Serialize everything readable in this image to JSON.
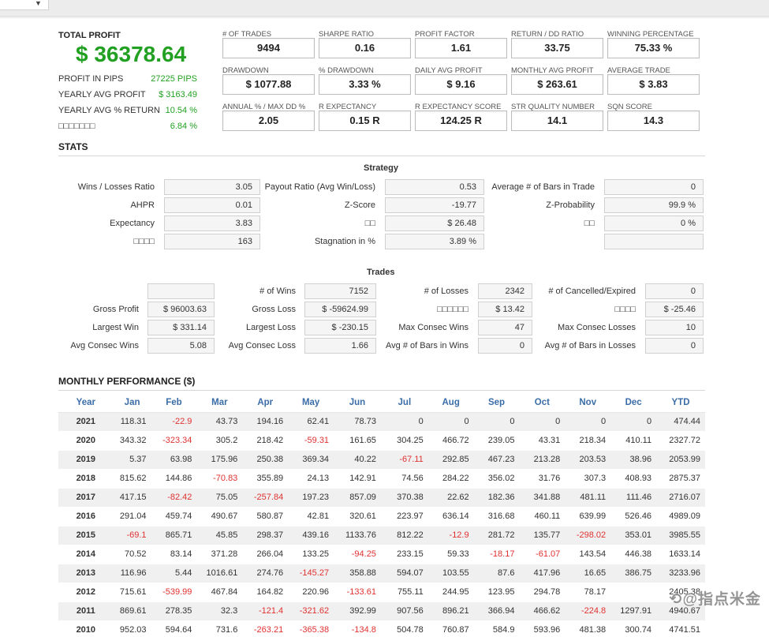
{
  "header": {
    "total_profit_label": "TOTAL PROFIT",
    "total_profit_value": "$ 36378.64",
    "summary": [
      {
        "label": "PROFIT IN PIPS",
        "value": "27225 PIPS"
      },
      {
        "label": "YEARLY AVG PROFIT",
        "value": "$ 3163.49"
      },
      {
        "label": "YEARLY AVG % RETURN",
        "value": "10.54 %"
      },
      {
        "label": "□□□□□□□",
        "value": "6.84 %"
      }
    ]
  },
  "metrics": [
    {
      "label": "# OF TRADES",
      "value": "9494"
    },
    {
      "label": "SHARPE RATIO",
      "value": "0.16"
    },
    {
      "label": "PROFIT FACTOR",
      "value": "1.61"
    },
    {
      "label": "RETURN / DD RATIO",
      "value": "33.75"
    },
    {
      "label": "WINNING PERCENTAGE",
      "value": "75.33 %"
    },
    {
      "label": "DRAWDOWN",
      "value": "$ 1077.88"
    },
    {
      "label": "% DRAWDOWN",
      "value": "3.33 %"
    },
    {
      "label": "DAILY AVG PROFIT",
      "value": "$ 9.16"
    },
    {
      "label": "MONTHLY AVG PROFIT",
      "value": "$ 263.61"
    },
    {
      "label": "AVERAGE TRADE",
      "value": "$ 3.83"
    },
    {
      "label": "ANNUAL % / MAX DD %",
      "value": "2.05"
    },
    {
      "label": "R EXPECTANCY",
      "value": "0.15 R"
    },
    {
      "label": "R EXPECTANCY SCORE",
      "value": "124.25 R"
    },
    {
      "label": "STR QUALITY NUMBER",
      "value": "14.1"
    },
    {
      "label": "SQN SCORE",
      "value": "14.3"
    }
  ],
  "stats": {
    "title": "STATS",
    "strategy_title": "Strategy",
    "strategy": [
      [
        {
          "label": "Wins / Losses Ratio",
          "value": "3.05"
        },
        {
          "label": "Payout Ratio (Avg Win/Loss)",
          "value": "0.53"
        },
        {
          "label": "Average # of Bars in Trade",
          "value": "0"
        }
      ],
      [
        {
          "label": "AHPR",
          "value": "0.01"
        },
        {
          "label": "Z-Score",
          "value": "-19.77"
        },
        {
          "label": "Z-Probability",
          "value": "99.9 %"
        }
      ],
      [
        {
          "label": "Expectancy",
          "value": "3.83"
        },
        {
          "label": "□□",
          "value": "$ 26.48"
        },
        {
          "label": "□□",
          "value": "0 %"
        }
      ],
      [
        {
          "label": "□□□□",
          "value": "163"
        },
        {
          "label": "Stagnation in %",
          "value": "3.89 %"
        },
        {
          "label": "",
          "value": ""
        }
      ]
    ],
    "trades_title": "Trades",
    "trades": [
      [
        {
          "label": "",
          "value": ""
        },
        {
          "label": "# of Wins",
          "value": "7152"
        },
        {
          "label": "# of Losses",
          "value": "2342"
        },
        {
          "label": "# of Cancelled/Expired",
          "value": "0"
        }
      ],
      [
        {
          "label": "Gross Profit",
          "value": "$ 96003.63"
        },
        {
          "label": "Gross Loss",
          "value": "$ -59624.99"
        },
        {
          "label": "□□□□□□",
          "value": "$ 13.42"
        },
        {
          "label": "□□□□",
          "value": "$ -25.46"
        }
      ],
      [
        {
          "label": "Largest Win",
          "value": "$ 331.14"
        },
        {
          "label": "Largest Loss",
          "value": "$ -230.15"
        },
        {
          "label": "Max Consec Wins",
          "value": "47"
        },
        {
          "label": "Max Consec Losses",
          "value": "10"
        }
      ],
      [
        {
          "label": "Avg Consec Wins",
          "value": "5.08"
        },
        {
          "label": "Avg Consec Loss",
          "value": "1.66"
        },
        {
          "label": "Avg # of Bars in Wins",
          "value": "0"
        },
        {
          "label": "Avg # of Bars in Losses",
          "value": "0"
        }
      ]
    ]
  },
  "monthly": {
    "title": "MONTHLY PERFORMANCE ($)",
    "columns": [
      "Year",
      "Jan",
      "Feb",
      "Mar",
      "Apr",
      "May",
      "Jun",
      "Jul",
      "Aug",
      "Sep",
      "Oct",
      "Nov",
      "Dec",
      "YTD"
    ],
    "rows": [
      [
        "2021",
        "118.31",
        "-22.9",
        "43.73",
        "194.16",
        "62.41",
        "78.73",
        "0",
        "0",
        "0",
        "0",
        "0",
        "0",
        "474.44"
      ],
      [
        "2020",
        "343.32",
        "-323.34",
        "305.2",
        "218.42",
        "-59.31",
        "161.65",
        "304.25",
        "466.72",
        "239.05",
        "43.31",
        "218.34",
        "410.11",
        "2327.72"
      ],
      [
        "2019",
        "5.37",
        "63.98",
        "175.96",
        "250.38",
        "369.34",
        "40.22",
        "-67.11",
        "292.85",
        "467.23",
        "213.28",
        "203.53",
        "38.96",
        "2053.99"
      ],
      [
        "2018",
        "815.62",
        "144.86",
        "-70.83",
        "355.89",
        "24.13",
        "142.91",
        "74.56",
        "284.22",
        "356.02",
        "31.76",
        "307.3",
        "408.93",
        "2875.37"
      ],
      [
        "2017",
        "417.15",
        "-82.42",
        "75.05",
        "-257.84",
        "197.23",
        "857.09",
        "370.38",
        "22.62",
        "182.36",
        "341.88",
        "481.11",
        "111.46",
        "2716.07"
      ],
      [
        "2016",
        "291.04",
        "459.74",
        "490.67",
        "580.87",
        "42.81",
        "320.61",
        "223.97",
        "636.14",
        "316.68",
        "460.11",
        "639.99",
        "526.46",
        "4989.09"
      ],
      [
        "2015",
        "-69.1",
        "865.71",
        "45.85",
        "298.37",
        "439.16",
        "1133.76",
        "812.22",
        "-12.9",
        "281.72",
        "135.77",
        "-298.02",
        "353.01",
        "3985.55"
      ],
      [
        "2014",
        "70.52",
        "83.14",
        "371.28",
        "266.04",
        "133.25",
        "-94.25",
        "233.15",
        "59.33",
        "-18.17",
        "-61.07",
        "143.54",
        "446.38",
        "1633.14"
      ],
      [
        "2013",
        "116.96",
        "5.44",
        "1016.61",
        "274.76",
        "-145.27",
        "358.88",
        "594.07",
        "103.55",
        "87.6",
        "417.96",
        "16.65",
        "386.75",
        "3233.96"
      ],
      [
        "2012",
        "715.61",
        "-539.99",
        "467.84",
        "164.82",
        "220.96",
        "-133.61",
        "755.11",
        "244.95",
        "123.95",
        "294.78",
        "78.17",
        "",
        "2405.38"
      ],
      [
        "2011",
        "869.61",
        "278.35",
        "32.3",
        "-121.4",
        "-321.62",
        "392.99",
        "907.56",
        "896.21",
        "366.94",
        "466.62",
        "-224.8",
        "1297.91",
        "4940.67"
      ],
      [
        "2010",
        "952.03",
        "594.64",
        "731.6",
        "-263.21",
        "-365.38",
        "-134.8",
        "504.78",
        "760.87",
        "584.9",
        "593.96",
        "481.38",
        "300.74",
        "4741.51"
      ]
    ]
  },
  "watermark": "⟲@指点米金"
}
